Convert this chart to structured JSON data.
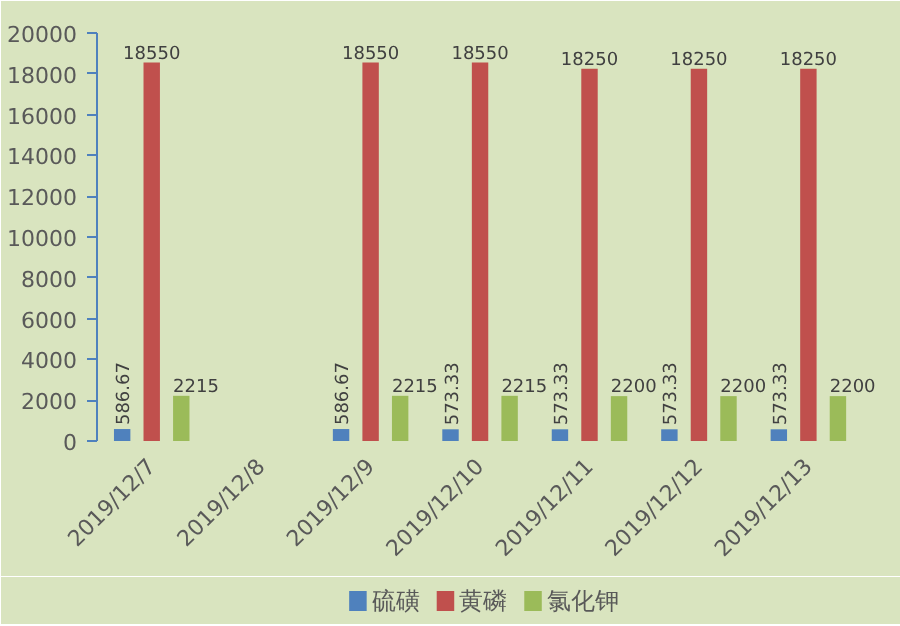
{
  "chart_data": {
    "type": "bar",
    "categories": [
      "2019/12/7",
      "2019/12/8",
      "2019/12/9",
      "2019/12/10",
      "2019/12/11",
      "2019/12/12",
      "2019/12/13"
    ],
    "series": [
      {
        "name": "硫磺",
        "color": "#4f81bd",
        "values": [
          586.67,
          null,
          586.67,
          573.33,
          573.33,
          573.33,
          573.33
        ]
      },
      {
        "name": "黄磷",
        "color": "#c0504d",
        "values": [
          18550,
          null,
          18550,
          18550,
          18250,
          18250,
          18250
        ]
      },
      {
        "name": "氯化钾",
        "color": "#9bbb59",
        "values": [
          2215,
          null,
          2215,
          2215,
          2200,
          2200,
          2200
        ]
      }
    ],
    "ylim": [
      0,
      20000
    ],
    "yticks": [
      0,
      2000,
      4000,
      6000,
      8000,
      10000,
      12000,
      14000,
      16000,
      18000,
      20000
    ],
    "data_labels": true,
    "grid": false,
    "legend": "bottom"
  }
}
